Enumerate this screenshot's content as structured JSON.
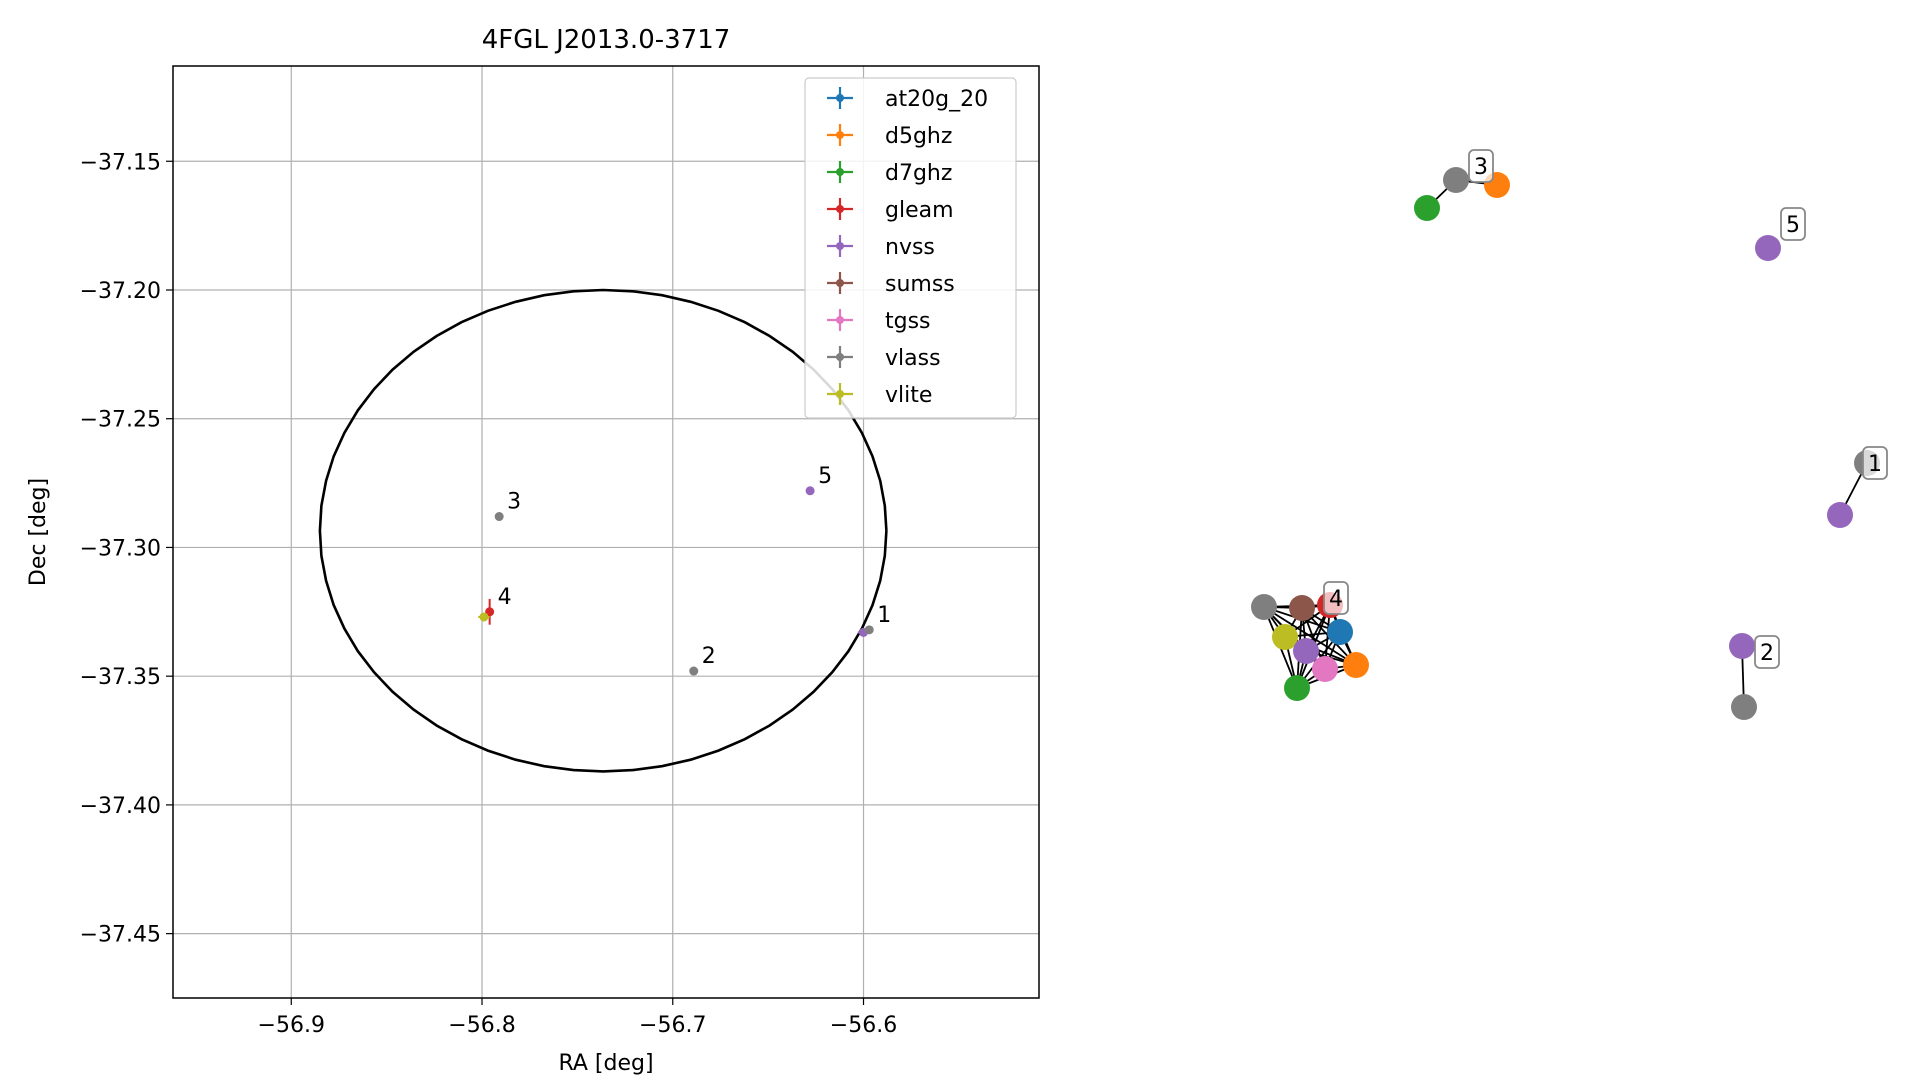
{
  "chart_data": [
    {
      "type": "scatter",
      "title": "4FGL J2013.0-3717",
      "xlabel": "RA [deg]",
      "ylabel": "Dec [deg]",
      "xlim": [
        -56.962,
        -56.508
      ],
      "ylim": [
        -37.475,
        -37.113
      ],
      "xticks": [
        -56.9,
        -56.8,
        -56.7,
        -56.6
      ],
      "xtick_labels": [
        "−56.9",
        "−56.8",
        "−56.7",
        "−56.6"
      ],
      "yticks": [
        -37.15,
        -37.2,
        -37.25,
        -37.3,
        -37.35,
        -37.4,
        -37.45
      ],
      "ytick_labels": [
        "−37.15",
        "−37.20",
        "−37.25",
        "−37.30",
        "−37.35",
        "−37.40",
        "−37.45"
      ],
      "grid": true,
      "legend_position": "top-right",
      "ellipse": {
        "ra_center": -56.7365,
        "dec_center": -37.2935,
        "semi_axis_ra": 0.1485,
        "semi_axis_dec": 0.0935,
        "color": "#000000"
      },
      "series": [
        {
          "name": "at20g_20",
          "color": "#1f77b4",
          "points": []
        },
        {
          "name": "d5ghz",
          "color": "#ff7f0e",
          "points": []
        },
        {
          "name": "d7ghz",
          "color": "#2ca02c",
          "points": []
        },
        {
          "name": "gleam",
          "color": "#d62728",
          "points": [
            {
              "ra": -56.796,
              "dec": -37.325,
              "err_dec": 0.005
            }
          ]
        },
        {
          "name": "nvss",
          "color": "#9467bd",
          "points": [
            {
              "ra": -56.628,
              "dec": -37.278
            },
            {
              "ra": -56.6,
              "dec": -37.333,
              "err_ra": 0.003
            }
          ]
        },
        {
          "name": "sumss",
          "color": "#8c564b",
          "points": []
        },
        {
          "name": "tgss",
          "color": "#e377c2",
          "points": []
        },
        {
          "name": "vlass",
          "color": "#7f7f7f",
          "points": [
            {
              "ra": -56.791,
              "dec": -37.288
            },
            {
              "ra": -56.689,
              "dec": -37.348
            },
            {
              "ra": -56.597,
              "dec": -37.332
            }
          ]
        },
        {
          "name": "vlite",
          "color": "#bcbd22",
          "points": [
            {
              "ra": -56.799,
              "dec": -37.327,
              "err_ra": 0.003
            }
          ]
        }
      ],
      "point_labels": [
        {
          "text": "1",
          "ra": -56.597,
          "dec": -37.332
        },
        {
          "text": "2",
          "ra": -56.689,
          "dec": -37.348
        },
        {
          "text": "3",
          "ra": -56.791,
          "dec": -37.288
        },
        {
          "text": "4",
          "ra": -56.796,
          "dec": -37.325
        },
        {
          "text": "5",
          "ra": -56.628,
          "dec": -37.278
        }
      ]
    },
    {
      "type": "network",
      "nodes": [
        {
          "id": "n3_vlass",
          "survey": "vlass",
          "color": "#7f7f7f"
        },
        {
          "id": "n3_d5ghz",
          "survey": "d5ghz",
          "color": "#ff7f0e"
        },
        {
          "id": "n3_d7ghz",
          "survey": "d7ghz",
          "color": "#2ca02c"
        },
        {
          "id": "n5_nvss",
          "survey": "nvss",
          "color": "#9467bd"
        },
        {
          "id": "n1_vlass",
          "survey": "vlass",
          "color": "#7f7f7f"
        },
        {
          "id": "n1_nvss",
          "survey": "nvss",
          "color": "#9467bd"
        },
        {
          "id": "n2_nvss",
          "survey": "nvss",
          "color": "#9467bd"
        },
        {
          "id": "n2_vlass",
          "survey": "vlass",
          "color": "#7f7f7f"
        },
        {
          "id": "n4_vlass",
          "survey": "vlass",
          "color": "#7f7f7f"
        },
        {
          "id": "n4_sumss",
          "survey": "sumss",
          "color": "#8c564b"
        },
        {
          "id": "n4_gleam",
          "survey": "gleam",
          "color": "#d62728"
        },
        {
          "id": "n4_at20g",
          "survey": "at20g_20",
          "color": "#1f77b4"
        },
        {
          "id": "n4_vlite",
          "survey": "vlite",
          "color": "#bcbd22"
        },
        {
          "id": "n4_nvss",
          "survey": "nvss",
          "color": "#9467bd"
        },
        {
          "id": "n4_tgss",
          "survey": "tgss",
          "color": "#e377c2"
        },
        {
          "id": "n4_d5ghz",
          "survey": "d5ghz",
          "color": "#ff7f0e"
        },
        {
          "id": "n4_d7ghz",
          "survey": "d7ghz",
          "color": "#2ca02c"
        }
      ],
      "edges": [
        [
          "n3_vlass",
          "n3_d5ghz"
        ],
        [
          "n3_vlass",
          "n3_d7ghz"
        ],
        [
          "n1_vlass",
          "n1_nvss"
        ],
        [
          "n2_nvss",
          "n2_vlass"
        ]
      ],
      "cluster_4": [
        "n4_vlass",
        "n4_sumss",
        "n4_gleam",
        "n4_at20g",
        "n4_vlite",
        "n4_nvss",
        "n4_tgss",
        "n4_d5ghz",
        "n4_d7ghz"
      ],
      "labels": [
        {
          "text": "3",
          "node": "n3_vlass"
        },
        {
          "text": "5",
          "node": "n5_nvss"
        },
        {
          "text": "1",
          "node": "n1_vlass"
        },
        {
          "text": "4",
          "node": "n4_gleam"
        },
        {
          "text": "2",
          "node": "n2_nvss"
        }
      ]
    }
  ]
}
